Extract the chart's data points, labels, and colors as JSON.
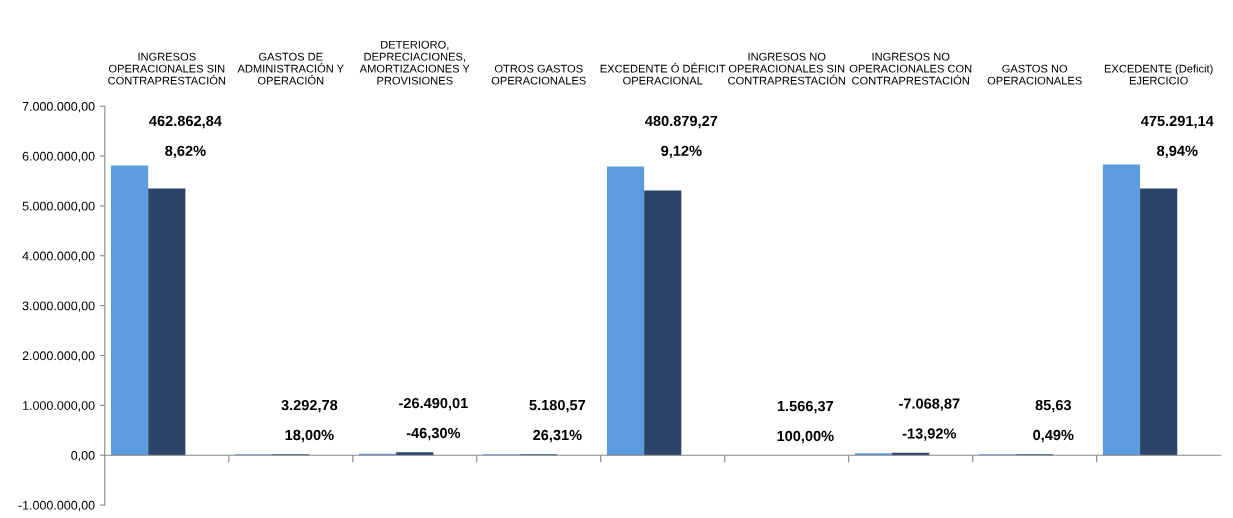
{
  "chart_data": {
    "type": "bar",
    "categories": [
      "INGRESOS\nOPERACIONALES SIN\nCONTRAPRESTACIÓN",
      "GASTOS DE\nADMINISTRACIÓN Y\nOPERACIÓN",
      "DETERIORO,\nDEPRECIACIONES,\nAMORTIZACIONES Y\nPROVISIONES",
      "OTROS GASTOS\nOPERACIONALES",
      "EXCEDENTE Ó DÉFICIT\nOPERACIONAL",
      "INGRESOS NO\nOPERACIONALES SIN\nCONTRAPRESTACIÓN",
      "INGRESOS NO\nOPERACIONALES CON\nCONTRAPRESTACIÓN",
      "GASTOS NO\nOPERACIONALES",
      "EXCEDENTE (Deficit)\nEJERCICIO"
    ],
    "series": [
      {
        "color": "#5b9be0",
        "values": [
          5810000,
          20000,
          30000,
          20000,
          5790000,
          0,
          40000,
          20000,
          5830000
        ]
      },
      {
        "color": "#2a4568",
        "values": [
          5350000,
          20000,
          60000,
          20000,
          5310000,
          0,
          50000,
          20000,
          5350000
        ]
      }
    ],
    "ylim": [
      -1000000,
      7000000
    ],
    "yticks": [
      {
        "value": -1000000,
        "label": "-1.000.000,00"
      },
      {
        "value": 0,
        "label": "0,00"
      },
      {
        "value": 1000000,
        "label": "1.000.000,00"
      },
      {
        "value": 2000000,
        "label": "2.000.000,00"
      },
      {
        "value": 3000000,
        "label": "3.000.000,00"
      },
      {
        "value": 4000000,
        "label": "4.000.000,00"
      },
      {
        "value": 5000000,
        "label": "5.000.000,00"
      },
      {
        "value": 6000000,
        "label": "6.000.000,00"
      },
      {
        "value": 7000000,
        "label": "7.000.000,00"
      }
    ],
    "annotations": [
      "462.862,84",
      "8,62%",
      "3.292,78",
      "18,00%",
      "-26.490,01",
      "-46,30%",
      "5.180,57",
      "26,31%",
      "480.879,27",
      "9,12%",
      "1.566,37",
      "100,00%",
      "-7.068,87",
      "-13,92%",
      "85,63",
      "0,49%",
      "475.291,14",
      "8,94%"
    ]
  }
}
